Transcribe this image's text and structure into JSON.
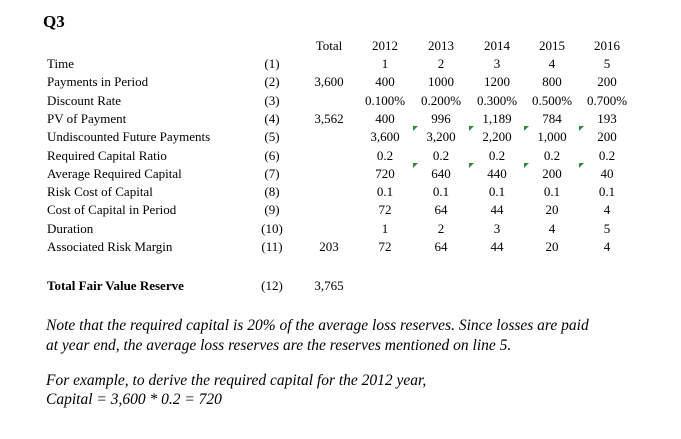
{
  "title": "Q3",
  "table": {
    "headers": [
      "Total",
      "2012",
      "2013",
      "2014",
      "2015",
      "2016"
    ],
    "rows": [
      {
        "label": "Time",
        "ref": "(1)",
        "total": "",
        "values": [
          "1",
          "2",
          "3",
          "4",
          "5"
        ]
      },
      {
        "label": "Payments in Period",
        "ref": "(2)",
        "total": "3,600",
        "values": [
          "400",
          "1000",
          "1200",
          "800",
          "200"
        ]
      },
      {
        "label": "Discount Rate",
        "ref": "(3)",
        "total": "",
        "values": [
          "0.100%",
          "0.200%",
          "0.300%",
          "0.500%",
          "0.700%"
        ]
      },
      {
        "label": "PV of Payment",
        "ref": "(4)",
        "total": "3,562",
        "values": [
          "400",
          "996",
          "1,189",
          "784",
          "193"
        ]
      },
      {
        "label": "Undiscounted Future Payments",
        "ref": "(5)",
        "total": "",
        "values": [
          "3,600",
          "3,200",
          "2,200",
          "1,000",
          "200"
        ]
      },
      {
        "label": "Required Capital Ratio",
        "ref": "(6)",
        "total": "",
        "values": [
          "0.2",
          "0.2",
          "0.2",
          "0.2",
          "0.2"
        ]
      },
      {
        "label": "Average Required Capital",
        "ref": "(7)",
        "total": "",
        "values": [
          "720",
          "640",
          "440",
          "200",
          "40"
        ]
      },
      {
        "label": "Risk Cost of Capital",
        "ref": "(8)",
        "total": "",
        "values": [
          "0.1",
          "0.1",
          "0.1",
          "0.1",
          "0.1"
        ]
      },
      {
        "label": "Cost of Capital in Period",
        "ref": "(9)",
        "total": "",
        "values": [
          "72",
          "64",
          "44",
          "20",
          "4"
        ]
      },
      {
        "label": "Duration",
        "ref": "(10)",
        "total": "",
        "values": [
          "1",
          "2",
          "3",
          "4",
          "5"
        ]
      },
      {
        "label": "Associated Risk Margin",
        "ref": "(11)",
        "total": "203",
        "values": [
          "72",
          "64",
          "44",
          "20",
          "4"
        ]
      }
    ],
    "total_row": {
      "label": "Total Fair Value Reserve",
      "ref": "(12)",
      "total": "3,765"
    }
  },
  "notes": {
    "note_line1": "Note that the required capital is 20% of the average loss reserves. Since losses are paid",
    "note_line2": "at year end, the average loss reserves are the reserves mentioned on line 5.",
    "example_line1": "For example, to derive the required capital for the 2012 year,",
    "example_line2": "Capital = 3,600 * 0.2 = 720"
  },
  "marker_color": "#2e8b3a"
}
